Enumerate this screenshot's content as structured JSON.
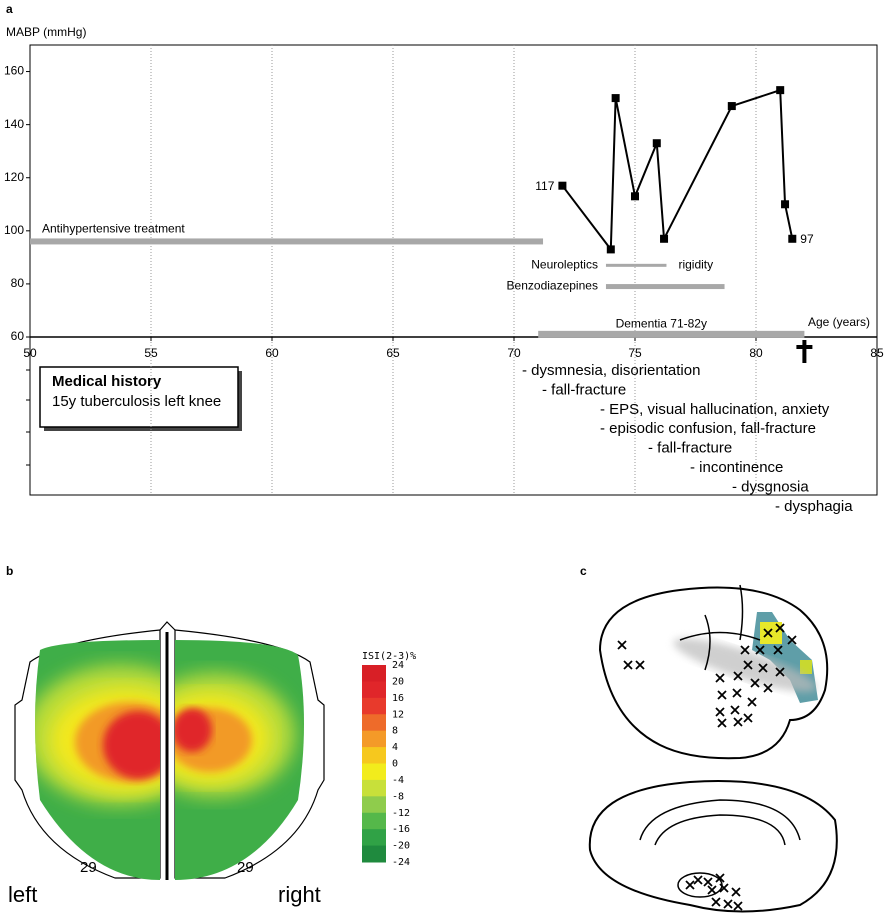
{
  "chart_data": {
    "type": "line",
    "panel_label": "a",
    "y_label": "MABP (mmHg)",
    "x_label": "Age (years)",
    "xlim": [
      50,
      85
    ],
    "xticks": [
      50,
      55,
      60,
      65,
      70,
      75,
      80,
      85
    ],
    "ylim": [
      60,
      170
    ],
    "yticks": [
      60,
      80,
      100,
      120,
      140,
      160
    ],
    "grid": true,
    "color": "#000000",
    "x": [
      72,
      74,
      74.2,
      75,
      75.9,
      76.2,
      79,
      81,
      81.2,
      81.5
    ],
    "values": [
      117,
      93,
      150,
      113,
      133,
      97,
      147,
      153,
      110,
      97
    ],
    "periods": [
      {
        "label": "Antihypertensive treatment",
        "start": 50,
        "end": 71.2,
        "y": 96
      },
      {
        "label": "Neuroleptics",
        "start": 73.8,
        "end": 76.3,
        "y": 87
      },
      {
        "label": "Benzodiazepines",
        "start": 73.8,
        "end": 78.7,
        "y": 79
      },
      {
        "label": "Dementia 71-82y",
        "start": 71,
        "end": 82,
        "y": 61
      }
    ],
    "period_color": "#a8a8a8",
    "annotation": "rigidity",
    "death_age": 82,
    "medical_history": {
      "title": "Medical history",
      "text": "15y tuberculosis left knee"
    },
    "events": [
      "- dysmnesia, disorientation",
      "- fall-fracture",
      "- EPS, visual hallucination, anxiety",
      "- episodic confusion, fall-fracture",
      "- fall-fracture",
      "- incontinence",
      "- dysgnosia",
      "- dysphagia"
    ]
  },
  "panel_b": {
    "label": "b",
    "colorbar_title": "ISI(2-3)%",
    "colorbar_ticks": [
      24,
      20,
      16,
      12,
      8,
      4,
      0,
      -4,
      -8,
      -12,
      -16,
      -20,
      -24
    ],
    "colors": [
      "#d81f26",
      "#e0262a",
      "#e83a2c",
      "#ee6b2a",
      "#f49a28",
      "#f6c81e",
      "#f2ec1c",
      "#c8e03a",
      "#8fcc4c",
      "#55b84a",
      "#30a246",
      "#1f8a3e"
    ],
    "electrodes": [
      "29",
      "29"
    ],
    "sides": [
      "left",
      "right"
    ]
  },
  "panel_c": {
    "label": "c"
  }
}
